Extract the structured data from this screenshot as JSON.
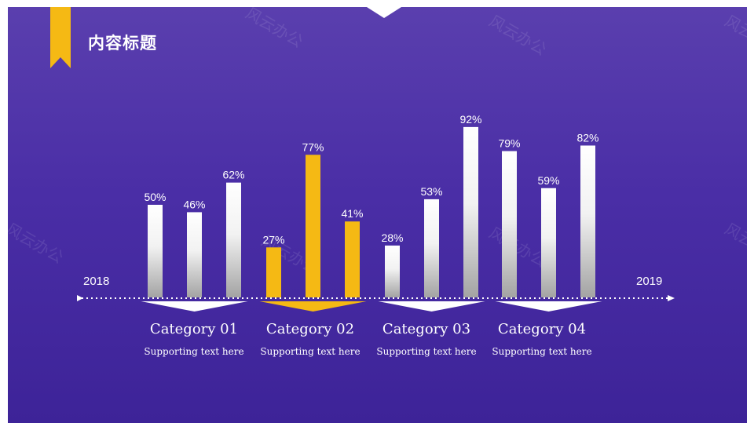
{
  "title": "内容标题",
  "watermark": "风云办公",
  "timeline": {
    "start": "2018",
    "end": "2019"
  },
  "colors": {
    "accent": "#f5b914",
    "background": "#4a2ea6",
    "bar": "#ffffff"
  },
  "chart_data": {
    "type": "bar",
    "categories": [
      "Category 01",
      "Category 02",
      "Category 03",
      "Category 04"
    ],
    "subtitles": [
      "Supporting text here",
      "Supporting text here",
      "Supporting text here",
      "Supporting text here"
    ],
    "values": [
      [
        50,
        46,
        62
      ],
      [
        27,
        77,
        41
      ],
      [
        28,
        53,
        92
      ],
      [
        79,
        59,
        82
      ]
    ],
    "highlighted_category": "Category 02",
    "unit": "%",
    "ylim": [
      0,
      100
    ],
    "grid": false
  }
}
